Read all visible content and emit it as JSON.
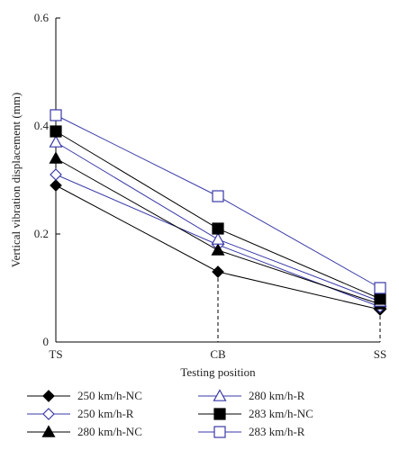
{
  "chart_data": {
    "type": "line",
    "title": "",
    "xlabel": "Testing position",
    "ylabel": "Vertical vibration displacement (mm)",
    "categories": [
      "TS",
      "CB",
      "SS"
    ],
    "ylim": [
      0,
      0.6
    ],
    "yticks": [
      0,
      0.2,
      0.4,
      0.6
    ],
    "ytick_labels": [
      "0",
      "0.2",
      "0.4",
      "0.6"
    ],
    "grid": false,
    "legend_position": "bottom",
    "series": [
      {
        "name": "250 km/h-NC",
        "values": [
          0.29,
          0.13,
          0.06
        ],
        "color": "#000000",
        "marker": "diamond",
        "fill": "filled"
      },
      {
        "name": "250 km/h-R",
        "values": [
          0.31,
          0.18,
          0.065
        ],
        "color": "#3a3aa8",
        "marker": "diamond",
        "fill": "open"
      },
      {
        "name": "280 km/h-NC",
        "values": [
          0.34,
          0.17,
          0.07
        ],
        "color": "#000000",
        "marker": "triangle",
        "fill": "filled"
      },
      {
        "name": "280 km/h-R",
        "values": [
          0.37,
          0.19,
          0.075
        ],
        "color": "#3a3aa8",
        "marker": "triangle",
        "fill": "open"
      },
      {
        "name": "283 km/h-NC",
        "values": [
          0.39,
          0.21,
          0.08
        ],
        "color": "#000000",
        "marker": "square",
        "fill": "filled"
      },
      {
        "name": "283 km/h-R",
        "values": [
          0.42,
          0.27,
          0.1
        ],
        "color": "#3a3aa8",
        "marker": "square",
        "fill": "open"
      }
    ]
  }
}
